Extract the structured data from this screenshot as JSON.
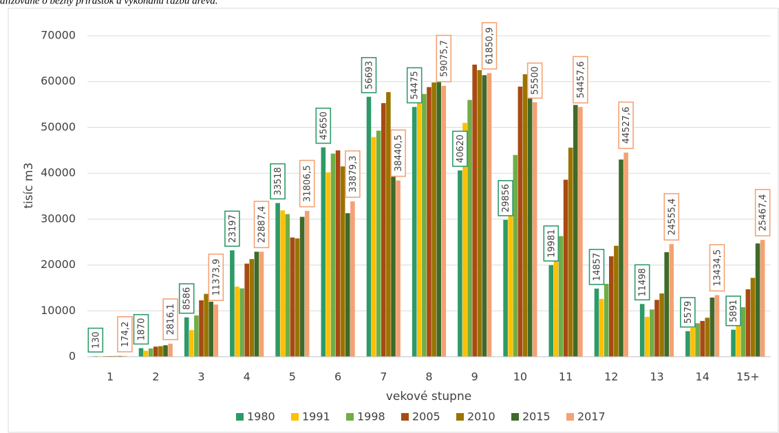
{
  "note": "alizované o bežný prírastok a vykonanú ťažbu dreva.",
  "chart_data": {
    "type": "bar",
    "ylabel": "tisíc m3",
    "xlabel": "vekové stupne",
    "categories": [
      "1",
      "2",
      "3",
      "4",
      "5",
      "6",
      "7",
      "8",
      "9",
      "10",
      "11",
      "12",
      "13",
      "14",
      "15+"
    ],
    "ylim": [
      0,
      70000
    ],
    "yticks": [
      0,
      10000,
      20000,
      30000,
      40000,
      50000,
      60000,
      70000
    ],
    "grid": true,
    "legend": "bottom",
    "series": [
      {
        "name": "1980",
        "color": "#2e9a68",
        "show_labels": true,
        "values": [
          130,
          1870,
          8586,
          23197,
          33518,
          45650,
          56693,
          54475,
          40620,
          29856,
          19981,
          14857,
          11498,
          5579,
          5891
        ]
      },
      {
        "name": "1991",
        "color": "#ffc000",
        "values": [
          100,
          1300,
          5800,
          15300,
          31900,
          40200,
          47900,
          57400,
          51000,
          31800,
          21500,
          12600,
          8700,
          6300,
          7900
        ]
      },
      {
        "name": "1998",
        "color": "#70ad47",
        "values": [
          150,
          1800,
          9000,
          14900,
          31100,
          44300,
          49300,
          57300,
          56000,
          44000,
          26300,
          15900,
          10300,
          7300,
          10800
        ]
      },
      {
        "name": "2005",
        "color": "#a84a12",
        "values": [
          150,
          2200,
          12300,
          20300,
          26000,
          45000,
          55300,
          58800,
          63700,
          58900,
          38600,
          21900,
          12400,
          7800,
          14700
        ]
      },
      {
        "name": "2010",
        "color": "#9a7400",
        "values": [
          160,
          2300,
          13700,
          21300,
          25800,
          41500,
          57700,
          59800,
          62500,
          61600,
          45600,
          24200,
          13800,
          8500,
          17200
        ]
      },
      {
        "name": "2015",
        "color": "#3f6a2a",
        "values": [
          170,
          2500,
          12000,
          22900,
          30500,
          31300,
          41300,
          60300,
          61400,
          56800,
          54900,
          43000,
          22800,
          12900,
          24700
        ]
      },
      {
        "name": "2017",
        "color": "#f4a273",
        "show_labels": true,
        "values": [
          174.2,
          2816.1,
          11373.9,
          22887.4,
          31806.5,
          33879.3,
          38440.5,
          59075.7,
          61850.9,
          55500,
          54457.6,
          44527.6,
          24555.4,
          13434.5,
          25467.4
        ],
        "value_labels": [
          "174,2",
          "2816,1",
          "11373,9",
          "22887,4",
          "31806,5",
          "33879,3",
          "38440,5",
          "59075,7",
          "61850,9",
          "55500",
          "54457,6",
          "44527,6",
          "24555,4",
          "13434,5",
          "25467,4"
        ]
      }
    ]
  }
}
